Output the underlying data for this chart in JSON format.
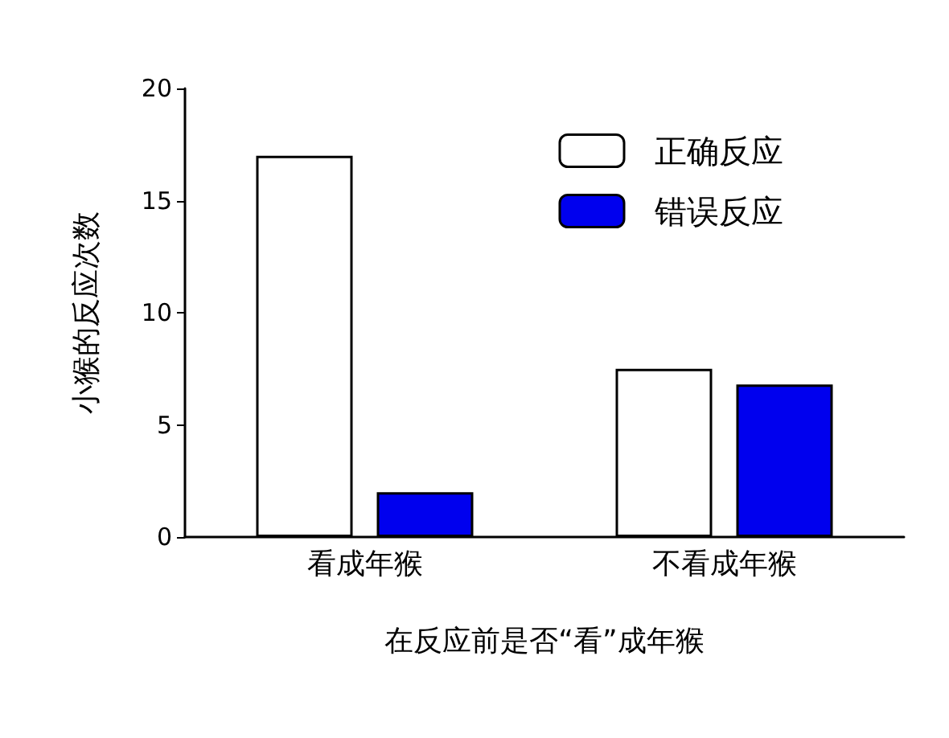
{
  "chart_data": {
    "type": "bar",
    "xlabel": "在反应前是否“看”成年猴",
    "ylabel": "小猴的反应次数",
    "categories": [
      "看成年猴",
      "不看成年猴"
    ],
    "series": [
      {
        "name": "正确反应",
        "color": "#ffffff",
        "values": [
          17,
          7.5
        ]
      },
      {
        "name": "错误反应",
        "color": "#0000ee",
        "values": [
          2,
          6.8
        ]
      }
    ],
    "ylim": [
      0,
      20
    ],
    "yticks": [
      0,
      5,
      10,
      15,
      20
    ],
    "grid": false,
    "legend": "top right"
  }
}
